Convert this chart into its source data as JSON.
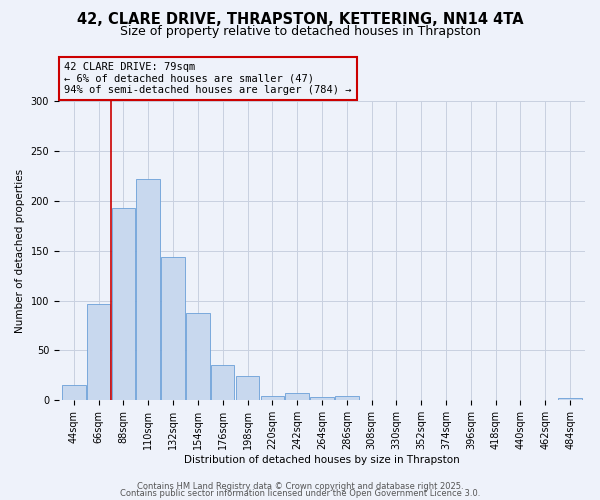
{
  "title_line1": "42, CLARE DRIVE, THRAPSTON, KETTERING, NN14 4TA",
  "title_line2": "Size of property relative to detached houses in Thrapston",
  "xlabel": "Distribution of detached houses by size in Thrapston",
  "ylabel": "Number of detached properties",
  "bar_labels": [
    "44sqm",
    "66sqm",
    "88sqm",
    "110sqm",
    "132sqm",
    "154sqm",
    "176sqm",
    "198sqm",
    "220sqm",
    "242sqm",
    "264sqm",
    "286sqm",
    "308sqm",
    "330sqm",
    "352sqm",
    "374sqm",
    "396sqm",
    "418sqm",
    "440sqm",
    "462sqm",
    "484sqm"
  ],
  "bar_values": [
    15,
    97,
    193,
    222,
    144,
    88,
    35,
    24,
    4,
    7,
    3,
    4,
    0,
    0,
    0,
    0,
    0,
    0,
    0,
    0,
    2
  ],
  "bar_color": "#c8d8ee",
  "bar_edge_color": "#6a9fd8",
  "vline_x": 1.5,
  "vline_color": "#cc0000",
  "annotation_line1": "42 CLARE DRIVE: 79sqm",
  "annotation_line2": "← 6% of detached houses are smaller (47)",
  "annotation_line3": "94% of semi-detached houses are larger (784) →",
  "annotation_box_edge": "#cc0000",
  "ylim": [
    0,
    300
  ],
  "yticks": [
    0,
    50,
    100,
    150,
    200,
    250,
    300
  ],
  "grid_color": "#c8d0e0",
  "bg_color": "#eef2fa",
  "footer_line1": "Contains HM Land Registry data © Crown copyright and database right 2025.",
  "footer_line2": "Contains public sector information licensed under the Open Government Licence 3.0.",
  "title_fontsize": 10.5,
  "subtitle_fontsize": 9,
  "axis_label_fontsize": 7.5,
  "tick_fontsize": 7,
  "annotation_fontsize": 7.5,
  "footer_fontsize": 6
}
